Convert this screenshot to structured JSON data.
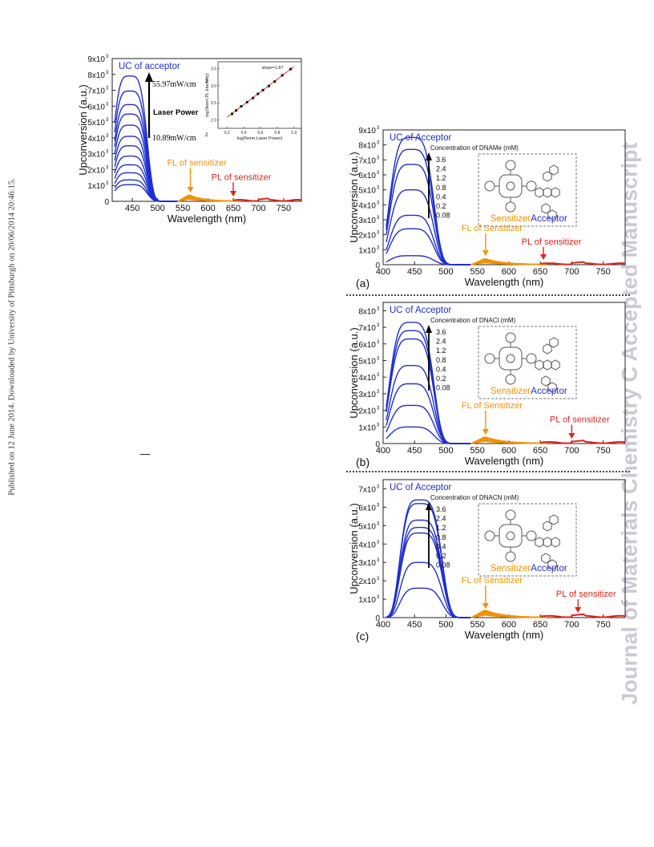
{
  "side_text_left": "Published on 12 June 2014. Downloaded by University of Pittsburgh on 20/06/2014 20:46:15.",
  "side_text_right": "Journal of Materials Chemistry C Accepted Manuscript",
  "colors": {
    "blue": "#1f2fd0",
    "orange": "#f39200",
    "red": "#e2231a"
  },
  "chart_data": [
    {
      "type": "line",
      "id": "main",
      "ylabel": "Upconversion (a.u.)",
      "xlabel": "Wavelength (nm)",
      "xlim": [
        410,
        785
      ],
      "ylim": [
        0,
        9000
      ],
      "xticks": [
        "450",
        "500",
        "550",
        "600",
        "650",
        "700",
        "750"
      ],
      "yticks": [
        "0",
        "1x10",
        "2x10",
        "3x10",
        "4x10",
        "5x10",
        "6x10",
        "7x10",
        "8x10",
        "9x10"
      ],
      "title_label": "UC of acceptor",
      "arrow_top": "55.97mW/cm",
      "arrow_bottom": "10.89mW/cm",
      "arrow_label": "Laser Power",
      "fl_label": "FL of sensitizer",
      "pl_label": "PL of sensitizer",
      "peaks": [
        7900,
        6950,
        6100,
        5500,
        4800,
        4100,
        3500,
        2850,
        2300,
        1800,
        1350,
        1050
      ],
      "inset": {
        "xlabel": "log(Norm.Laser Power)",
        "ylabel": "log(Norm.PL Intensity)",
        "slope_label": "slope=1.87",
        "xticks": [
          "0.2",
          "0.4",
          "0.6",
          "0.8",
          "1.0"
        ],
        "yticks": [
          "2.0",
          "2.5",
          "3.0",
          "3.5"
        ],
        "x": [
          0.26,
          0.31,
          0.37,
          0.44,
          0.51,
          0.57,
          0.63,
          0.7,
          0.77,
          0.86,
          0.96
        ],
        "y": [
          2.18,
          2.28,
          2.4,
          2.52,
          2.64,
          2.76,
          2.87,
          2.99,
          3.12,
          3.3,
          3.48
        ]
      }
    },
    {
      "type": "line",
      "id": "a",
      "panel": "(a)",
      "ylabel": "Upconversion (a.u.)",
      "xlabel": "Wavelength (nm)",
      "xlim": [
        400,
        785
      ],
      "ylim": [
        0,
        9000
      ],
      "xticks": [
        "400",
        "450",
        "500",
        "550",
        "600",
        "650",
        "700",
        "750"
      ],
      "yticks": [
        "0",
        "1x10",
        "2x10",
        "3x10",
        "4x10",
        "5x10",
        "6x10",
        "7x10",
        "8x10",
        "9x10"
      ],
      "title_label": "UC of Acceptor",
      "conc_label": "Concentration of DNAMe (mM)",
      "conc_values": [
        "3.6",
        "2.4",
        "1.2",
        "0.8",
        "0.4",
        "0.2",
        "0.08"
      ],
      "sensitizer": "Sensitizer",
      "acceptor": "Acceptor",
      "fl_label": "FL of Sensitizer",
      "pl_label": "PL of sensitizer",
      "peaks": [
        8500,
        7700,
        6700,
        5000,
        3300,
        2400,
        600
      ]
    },
    {
      "type": "line",
      "id": "b",
      "panel": "(b)",
      "ylabel": "Upconversion (a.u.)",
      "xlabel": "Wavelength (nm)",
      "xlim": [
        400,
        785
      ],
      "ylim": [
        0,
        8500
      ],
      "xticks": [
        "400",
        "450",
        "500",
        "550",
        "600",
        "650",
        "700",
        "750"
      ],
      "yticks": [
        "0",
        "1x10",
        "2x10",
        "3x10",
        "4x10",
        "5x10",
        "6x10",
        "7x10",
        "8x10"
      ],
      "title_label": "UC of Acceptor",
      "conc_label": "Concentration of DNACl (mM)",
      "conc_values": [
        "3.6",
        "2.4",
        "1.2",
        "0.8",
        "0.4",
        "0.2",
        "0.08"
      ],
      "sensitizer": "Sensitizer",
      "acceptor": "Acceptor",
      "fl_label": "FL of Sensitizer",
      "pl_label": "PL of sensitizer",
      "peaks": [
        7300,
        6800,
        6300,
        4700,
        3600,
        2300,
        1000
      ]
    },
    {
      "type": "line",
      "id": "c",
      "panel": "(c)",
      "ylabel": "Upconversion (a.u.)",
      "xlabel": "Wavelength (nm)",
      "xlim": [
        400,
        785
      ],
      "ylim": [
        0,
        7500
      ],
      "xticks": [
        "400",
        "450",
        "500",
        "550",
        "600",
        "650",
        "700",
        "750"
      ],
      "yticks": [
        "0",
        "1x10",
        "2x10",
        "3x10",
        "4x10",
        "5x10",
        "6x10",
        "7x10"
      ],
      "title_label": "UC of Acceptor",
      "conc_label": "Concentration of DNACN (mM)",
      "conc_values": [
        "3.6",
        "2.4",
        "1.2",
        "0.8",
        "0.4",
        "0.2",
        "0.08"
      ],
      "sensitizer": "Sensitizer",
      "acceptor": "Acceptor",
      "fl_label": "FL of Sensitizer",
      "pl_label": "PL of sensitizer",
      "peaks": [
        6400,
        6200,
        5300,
        4900,
        4600,
        3000,
        1600
      ]
    }
  ]
}
